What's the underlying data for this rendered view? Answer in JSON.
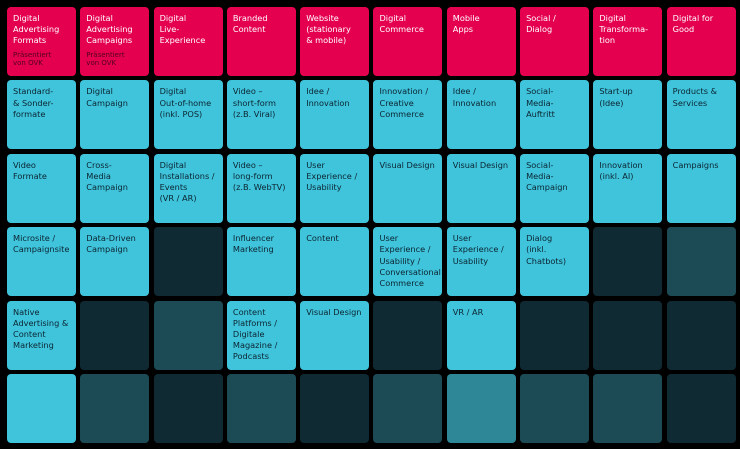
{
  "rows": [
    [
      {
        "kind": "header",
        "text": "Digital\nAdvertising\nFormats",
        "sub": "Präsentiert\nvon OVK"
      },
      {
        "kind": "header",
        "text": "Digital\nAdvertising\nCampaigns",
        "sub": "Präsentiert\nvon OVK"
      },
      {
        "kind": "header",
        "text": "Digital\nLive-\nExperience"
      },
      {
        "kind": "header",
        "text": "Branded\nContent"
      },
      {
        "kind": "header",
        "text": "Website\n(stationary\n& mobile)"
      },
      {
        "kind": "header",
        "text": "Digital\nCommerce"
      },
      {
        "kind": "header",
        "text": "Mobile\nApps"
      },
      {
        "kind": "header",
        "text": "Social /\nDialog"
      },
      {
        "kind": "header",
        "text": "Digital\nTransforma-\ntion"
      },
      {
        "kind": "header",
        "text": "Digital for\nGood"
      }
    ],
    [
      {
        "kind": "light",
        "text": "Standard-\n& Sonder-\nformate"
      },
      {
        "kind": "light",
        "text": "Digital\nCampaign"
      },
      {
        "kind": "light",
        "text": "Digital\nOut-of-home\n(inkl. POS)"
      },
      {
        "kind": "light",
        "text": "Video –\nshort-form\n(z.B. Viral)"
      },
      {
        "kind": "light",
        "text": "Idee /\nInnovation"
      },
      {
        "kind": "light",
        "text": "Innovation /\nCreative\nCommerce"
      },
      {
        "kind": "light",
        "text": "Idee /\nInnovation"
      },
      {
        "kind": "light",
        "text": "Social-\nMedia-\nAuftritt"
      },
      {
        "kind": "light",
        "text": "Start-up\n(Idee)"
      },
      {
        "kind": "light",
        "text": "Products &\nServices"
      }
    ],
    [
      {
        "kind": "light",
        "text": "Video\nFormate"
      },
      {
        "kind": "light",
        "text": "Cross-\nMedia\nCampaign"
      },
      {
        "kind": "light",
        "text": "Digital\nInstallations /\nEvents\n(VR / AR)"
      },
      {
        "kind": "light",
        "text": "Video –\nlong-form\n(z.B. WebTV)"
      },
      {
        "kind": "light",
        "text": "User\nExperience /\nUsability"
      },
      {
        "kind": "light",
        "text": "Visual Design"
      },
      {
        "kind": "light",
        "text": "Visual Design"
      },
      {
        "kind": "light",
        "text": "Social-\nMedia-\nCampaign"
      },
      {
        "kind": "light",
        "text": "Innovation\n(inkl. AI)"
      },
      {
        "kind": "light",
        "text": "Campaigns"
      }
    ],
    [
      {
        "kind": "light",
        "text": "Microsite /\nCampaignsite"
      },
      {
        "kind": "light",
        "text": "Data-Driven\nCampaign"
      },
      {
        "kind": "dark",
        "text": ""
      },
      {
        "kind": "light",
        "text": "Influencer\nMarketing"
      },
      {
        "kind": "light",
        "text": "Content"
      },
      {
        "kind": "light",
        "text": "User\nExperience /\nUsability /\nConversational\nCommerce"
      },
      {
        "kind": "light",
        "text": "User\nExperience /\nUsability"
      },
      {
        "kind": "light",
        "text": "Dialog\n(inkl. Chatbots)"
      },
      {
        "kind": "dark",
        "text": ""
      },
      {
        "kind": "mid",
        "text": ""
      }
    ],
    [
      {
        "kind": "light",
        "text": "Native\nAdvertising &\nContent\nMarketing"
      },
      {
        "kind": "dark",
        "text": ""
      },
      {
        "kind": "mid",
        "text": ""
      },
      {
        "kind": "light",
        "text": "Content\nPlatforms /\nDigitale\nMagazine /\nPodcasts"
      },
      {
        "kind": "light",
        "text": "Visual Design"
      },
      {
        "kind": "dark",
        "text": ""
      },
      {
        "kind": "light",
        "text": "VR / AR"
      },
      {
        "kind": "dark",
        "text": ""
      },
      {
        "kind": "dark",
        "text": ""
      },
      {
        "kind": "dark",
        "text": ""
      }
    ],
    [
      {
        "kind": "light",
        "text": ""
      },
      {
        "kind": "mid",
        "text": ""
      },
      {
        "kind": "dark",
        "text": ""
      },
      {
        "kind": "mid",
        "text": ""
      },
      {
        "kind": "dark",
        "text": ""
      },
      {
        "kind": "mid",
        "text": ""
      },
      {
        "kind": "accent",
        "text": ""
      },
      {
        "kind": "mid",
        "text": ""
      },
      {
        "kind": "mid",
        "text": ""
      },
      {
        "kind": "dark",
        "text": ""
      }
    ]
  ]
}
